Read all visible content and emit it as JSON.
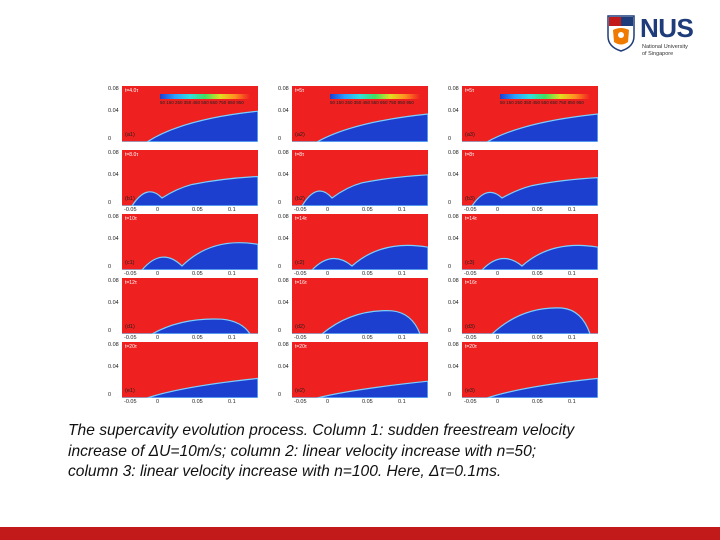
{
  "logo": {
    "name": "NUS",
    "line1": "National University",
    "line2": "of Singapore",
    "colors": {
      "blue": "#1f3c7a",
      "orange": "#ef7c00"
    }
  },
  "figure": {
    "colorbar_ticks": "50 150 250 350 450 550 650 750 850 950",
    "y_ticks": [
      "0.08",
      "0.04",
      "0"
    ],
    "x_ticks": [
      "-0.05",
      "0",
      "0.05",
      "0.1"
    ],
    "colors": {
      "water": "#ee2020",
      "vapor": "#1d3fd0",
      "edge": "#7ad0ff"
    },
    "columns": [
      {
        "id": "1",
        "panels": [
          {
            "label": "(a1)",
            "time": "t=4.0τ",
            "cavity": 0.55
          },
          {
            "label": "(b1)",
            "time": "t=8.0τ",
            "cavity": 0.42
          },
          {
            "label": "(c1)",
            "time": "t=10τ",
            "cavity": 0.6
          },
          {
            "label": "(d1)",
            "time": "t=12τ",
            "cavity": 0.3
          },
          {
            "label": "(e1)",
            "time": "t=20τ",
            "cavity": 0.35
          }
        ]
      },
      {
        "id": "2",
        "panels": [
          {
            "label": "(a2)",
            "time": "t=5τ",
            "cavity": 0.5
          },
          {
            "label": "(b2)",
            "time": "t=8τ",
            "cavity": 0.45
          },
          {
            "label": "(c2)",
            "time": "t=14τ",
            "cavity": 0.55
          },
          {
            "label": "(d2)",
            "time": "t=16τ",
            "cavity": 0.45
          },
          {
            "label": "(e2)",
            "time": "t=20τ",
            "cavity": 0.3
          }
        ]
      },
      {
        "id": "3",
        "panels": [
          {
            "label": "(a3)",
            "time": "t=5τ",
            "cavity": 0.5
          },
          {
            "label": "(b3)",
            "time": "t=8τ",
            "cavity": 0.4
          },
          {
            "label": "(c3)",
            "time": "t=14τ",
            "cavity": 0.55
          },
          {
            "label": "(d3)",
            "time": "t=16τ",
            "cavity": 0.5
          },
          {
            "label": "(e3)",
            "time": "t=20τ",
            "cavity": 0.35
          }
        ]
      }
    ]
  },
  "caption": {
    "line1": "The supercavity evolution process. Column 1: sudden freestream velocity",
    "line2": "increase of ΔU=10m/s; column 2: linear velocity increase with n=50;",
    "line3": "column 3: linear velocity increase with n=100. Here, Δτ=0.1ms."
  },
  "footer": {
    "color": "#c21a1a"
  }
}
